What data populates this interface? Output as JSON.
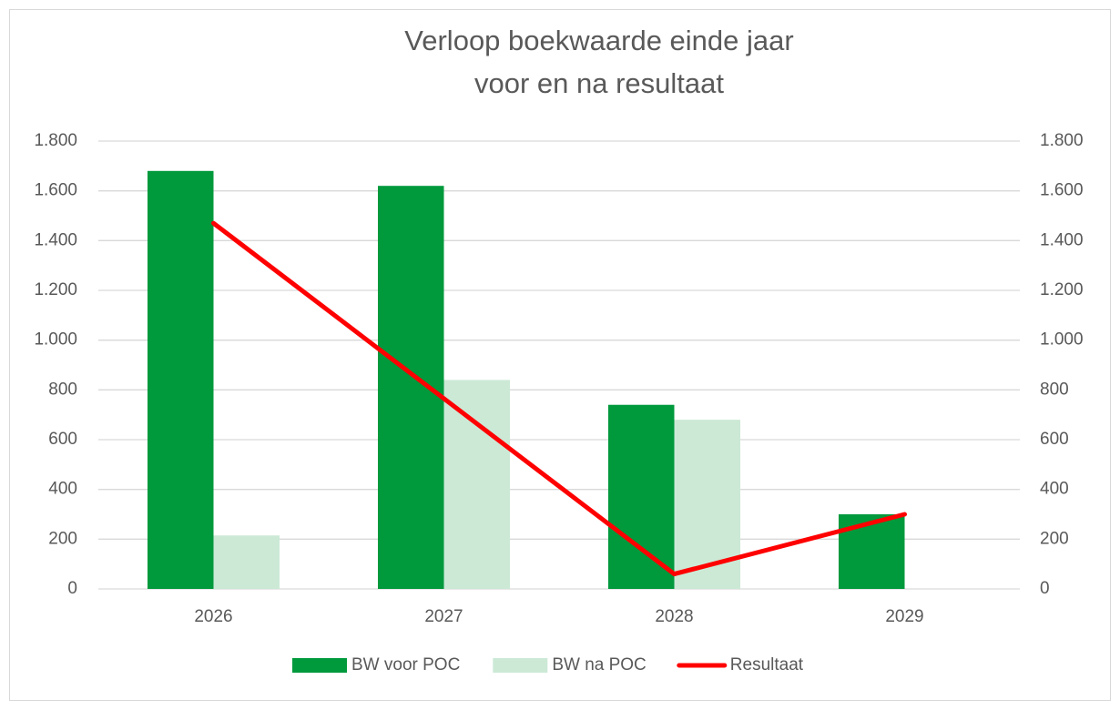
{
  "chart_data": {
    "type": "bar_line",
    "title": [
      "Verloop boekwaarde einde jaar",
      "voor en na resultaat"
    ],
    "categories": [
      "2026",
      "2027",
      "2028",
      "2029"
    ],
    "series": [
      {
        "name": "BW voor POC",
        "type": "bar",
        "color": "#00993c",
        "values": [
          1680,
          1620,
          740,
          300
        ]
      },
      {
        "name": "BW na POC",
        "type": "bar",
        "color": "#cce9d6",
        "values": [
          215,
          840,
          680,
          0
        ]
      },
      {
        "name": "Resultaat",
        "type": "line",
        "axis": "y2",
        "color": "#ff0000",
        "values": [
          1470,
          765,
          60,
          300
        ]
      }
    ],
    "ylim": [
      0,
      1800
    ],
    "yticks": [
      0,
      200,
      400,
      600,
      800,
      {
        "value": 1000,
        "label": "1.000"
      },
      {
        "value": 1200,
        "label": "1.200"
      },
      {
        "value": 1400,
        "label": "1.400"
      },
      {
        "value": 1600,
        "label": "1.600"
      },
      {
        "value": 1800,
        "label": "1.800"
      }
    ],
    "y2lim": [
      0,
      1800
    ],
    "y2ticks": [
      0,
      200,
      400,
      600,
      800,
      {
        "value": 1000,
        "label": "1.000"
      },
      {
        "value": 1200,
        "label": "1.200"
      },
      {
        "value": 1400,
        "label": "1.400"
      },
      {
        "value": 1600,
        "label": "1.600"
      },
      {
        "value": 1800,
        "label": "1.800"
      }
    ],
    "grid": true,
    "legend": "bottom"
  }
}
